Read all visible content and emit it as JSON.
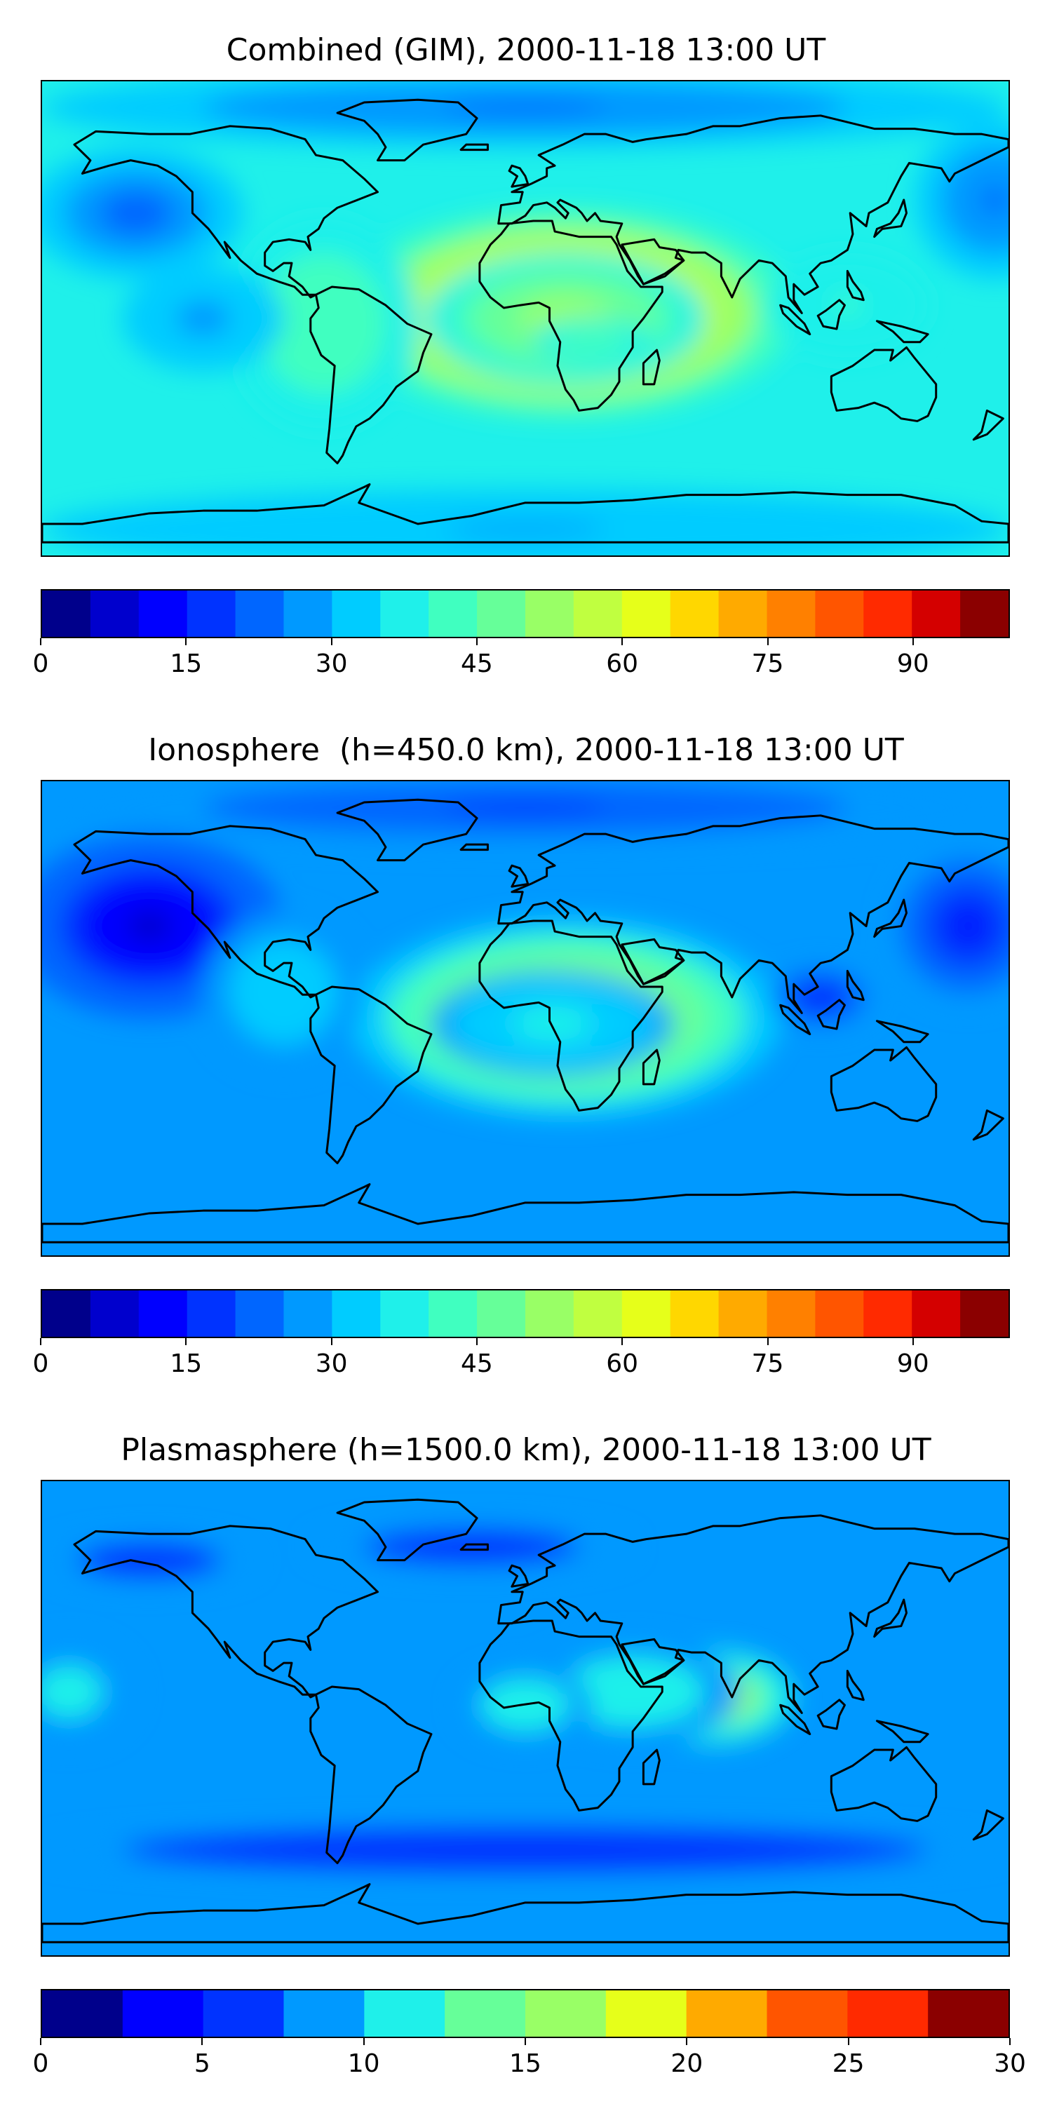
{
  "panels": [
    {
      "title": "Combined (GIM), 2000-11-18 13:00 UT",
      "colorbar": {
        "min": 0,
        "max": 100,
        "step": 5,
        "ticks": [
          "0",
          "15",
          "30",
          "45",
          "60",
          "75",
          "90"
        ]
      },
      "base_level": 0.36,
      "blobs": [
        {
          "lon": 15,
          "lat": 2,
          "rx": 85,
          "ry": 40,
          "v": 0.48
        },
        {
          "lon": 15,
          "lat": 0,
          "rx": 52,
          "ry": 25,
          "v": 0.22
        },
        {
          "lon": 25,
          "lat": -8,
          "rx": 22,
          "ry": 8,
          "v": 0.1
        },
        {
          "lon": -75,
          "lat": -2,
          "rx": 35,
          "ry": 40,
          "v": 0.1
        },
        {
          "lon": -145,
          "lat": 40,
          "rx": 40,
          "ry": 25,
          "v": -0.18
        },
        {
          "lon": -120,
          "lat": 0,
          "rx": 30,
          "ry": 20,
          "v": -0.1
        },
        {
          "lon": 175,
          "lat": 45,
          "rx": 30,
          "ry": 30,
          "v": -0.15
        },
        {
          "lon": 0,
          "lat": 80,
          "rx": 180,
          "ry": 15,
          "v": -0.14
        },
        {
          "lon": 0,
          "lat": -80,
          "rx": 180,
          "ry": 15,
          "v": -0.08
        },
        {
          "lon": 120,
          "lat": 5,
          "rx": 30,
          "ry": 20,
          "v": 0.05
        }
      ]
    },
    {
      "title": "Ionosphere  (h=450.0 km), 2000-11-18 13:00 UT",
      "colorbar": {
        "min": 0,
        "max": 100,
        "step": 5,
        "ticks": [
          "0",
          "15",
          "30",
          "45",
          "60",
          "75",
          "90"
        ]
      },
      "base_level": 0.28,
      "blobs": [
        {
          "lon": 15,
          "lat": 0,
          "rx": 80,
          "ry": 38,
          "v": 0.45
        },
        {
          "lon": 10,
          "lat": -2,
          "rx": 45,
          "ry": 20,
          "v": 0.12
        },
        {
          "lon": -140,
          "lat": 35,
          "rx": 50,
          "ry": 35,
          "v": -0.24
        },
        {
          "lon": 110,
          "lat": 8,
          "rx": 20,
          "ry": 12,
          "v": -0.18
        },
        {
          "lon": 165,
          "lat": 35,
          "rx": 30,
          "ry": 30,
          "v": -0.16
        },
        {
          "lon": 0,
          "lat": 80,
          "rx": 180,
          "ry": 15,
          "v": -0.1
        },
        {
          "lon": -90,
          "lat": 10,
          "rx": 30,
          "ry": 30,
          "v": 0.05
        }
      ]
    },
    {
      "title": "Plasmasphere (h=1500.0 km), 2000-11-18 13:00 UT",
      "colorbar": {
        "min": 0,
        "max": 30,
        "step": 2.5,
        "ticks": [
          "0",
          "5",
          "10",
          "15",
          "20",
          "25",
          "30"
        ]
      },
      "base_level": 0.28,
      "blobs": [
        {
          "lon": 70,
          "lat": 8,
          "rx": 30,
          "ry": 18,
          "v": 0.45
        },
        {
          "lon": 40,
          "lat": 10,
          "rx": 40,
          "ry": 20,
          "v": 0.15
        },
        {
          "lon": 0,
          "lat": 5,
          "rx": 25,
          "ry": 15,
          "v": 0.15
        },
        {
          "lon": -170,
          "lat": 10,
          "rx": 25,
          "ry": 20,
          "v": 0.1
        },
        {
          "lon": 0,
          "lat": -50,
          "rx": 180,
          "ry": 10,
          "v": -0.12
        },
        {
          "lon": -20,
          "lat": 65,
          "rx": 60,
          "ry": 10,
          "v": -0.1
        },
        {
          "lon": -140,
          "lat": 60,
          "rx": 40,
          "ry": 10,
          "v": -0.08
        }
      ]
    }
  ],
  "palette": [
    "#00008b",
    "#0000cd",
    "#0000ff",
    "#0033ff",
    "#0066ff",
    "#0099ff",
    "#00ccff",
    "#1ff0ea",
    "#40ffc0",
    "#66ff99",
    "#99ff66",
    "#c0ff40",
    "#e6ff1a",
    "#ffd700",
    "#ffaa00",
    "#ff8000",
    "#ff5500",
    "#ff2a00",
    "#d40000",
    "#8b0000"
  ],
  "coastline_color": "#000000"
}
